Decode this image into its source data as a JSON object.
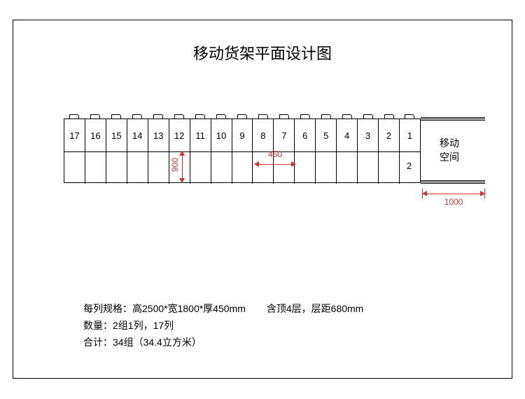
{
  "title": "移动货架平面设计图",
  "shelf": {
    "columns": [
      "17",
      "16",
      "15",
      "14",
      "13",
      "12",
      "11",
      "10",
      "9",
      "8",
      "7",
      "6",
      "5",
      "4",
      "3",
      "2",
      "1"
    ],
    "row2_last_label": "2",
    "column_count": 17
  },
  "side_label_line1": "移动",
  "side_label_line2": "空间",
  "dimensions": {
    "vertical": "900",
    "cell_width": "450",
    "aisle": "1000"
  },
  "colors": {
    "accent": "#d8322f",
    "line": "#000000",
    "bg": "#ffffff"
  },
  "spec": {
    "line1a": "每列规格：高2500*宽1800*厚450mm",
    "line1b": "含顶4层，层距680mm",
    "line2": "数量：2组1列，17列",
    "line3": "合计：34组（34.4立方米）"
  }
}
